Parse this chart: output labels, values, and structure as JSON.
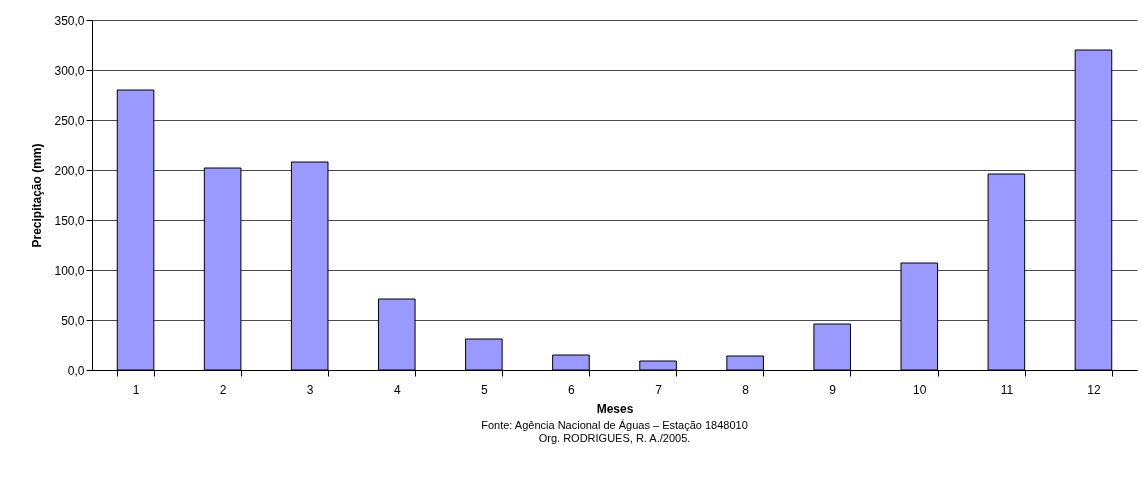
{
  "chart_data": {
    "type": "bar",
    "xlabel": "Meses",
    "ylabel": "Precipitação (mm)",
    "categories": [
      "1",
      "2",
      "3",
      "4",
      "5",
      "6",
      "7",
      "8",
      "9",
      "10",
      "11",
      "12"
    ],
    "values": [
      280,
      202,
      208,
      71,
      31,
      15,
      9,
      14,
      46,
      107,
      196,
      320
    ],
    "color": "#9999ff",
    "ylim": [
      0,
      350
    ],
    "yticks": [
      {
        "value": 0,
        "label": "0,0"
      },
      {
        "value": 50,
        "label": "50,0"
      },
      {
        "value": 100,
        "label": "100,0"
      },
      {
        "value": 150,
        "label": "150,0"
      },
      {
        "value": 200,
        "label": "200,0"
      },
      {
        "value": 250,
        "label": "250,0"
      },
      {
        "value": 300,
        "label": "300,0"
      },
      {
        "value": 350,
        "label": "350,0"
      }
    ],
    "grid": "y",
    "annotations": [
      "Fonte: Agência Nacional de Águas – Estação 1848010",
      "Org. RODRIGUES, R. A./2005."
    ]
  }
}
